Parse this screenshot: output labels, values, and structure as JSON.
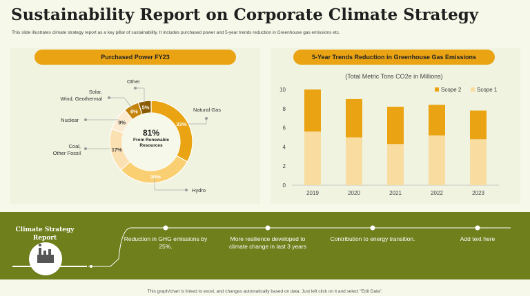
{
  "title": "Sustainability Report on Corporate Climate Strategy",
  "subtitle": "This slide illustrates climate strategy report as a key pillar of sustainability. It includes purchased power and 5-year trends reduction in Greenhouse gas emissions etc.",
  "colors": {
    "gold": "#eaa413",
    "light": "#f9dca0",
    "dark": "#8a5a00",
    "green": "#6e7f1c"
  },
  "chart_data": [
    {
      "type": "pie",
      "title": "Purchased Power FY23",
      "center_value": "81%",
      "center_label": "From Renewable Resources",
      "slices": [
        {
          "label": "Natural Gas",
          "value": 33,
          "display": "33%"
        },
        {
          "label": "Hydro",
          "value": 30,
          "display": "30%"
        },
        {
          "label": "Coal, Other Fossil",
          "value": 17,
          "display": "17%"
        },
        {
          "label": "Nuclear",
          "value": 9,
          "display": "9%"
        },
        {
          "label": "Solar, Wind, Geothermal",
          "value": 6,
          "display": "6%"
        },
        {
          "label": "Other",
          "value": 5,
          "display": "5%"
        }
      ],
      "callouts": {
        "natural_gas": "Natural Gas",
        "hydro": "Hydro",
        "coal_1": "Coal,",
        "coal_2": "Other Fossil",
        "nuclear": "Nuclear",
        "solar_1": "Solar,",
        "solar_2": "Wind, Geothermal",
        "other": "Other"
      }
    },
    {
      "type": "bar",
      "stacked": true,
      "title": "5-Year Trends Reduction in Greenhouse Gas Emissions",
      "ylabel": "(Total Metric Tons CO2e in Millions)",
      "categories": [
        "2019",
        "2020",
        "2021",
        "2022",
        "2023"
      ],
      "series": [
        {
          "name": "Scope 1",
          "values": [
            5.6,
            5.0,
            4.3,
            5.2,
            4.8
          ]
        },
        {
          "name": "Scope 2",
          "values": [
            4.4,
            4.0,
            3.9,
            3.2,
            3.0
          ]
        }
      ],
      "ylim": [
        0,
        10
      ],
      "yticks": [
        "0",
        "2",
        "4",
        "6",
        "8",
        "10"
      ]
    }
  ],
  "band": {
    "title": "Climate Strategy Report",
    "points": [
      {
        "text": "Reduction in GHG emissions by 25%."
      },
      {
        "text": "More resilience developed to climate change in last 3 years"
      },
      {
        "text": "Contribution to energy transition."
      },
      {
        "text": "Add text here"
      }
    ]
  },
  "footer": "This graph/chart is linked to excel, and changes automatically based on data. Just left click on it and select \"Edit Data\"."
}
